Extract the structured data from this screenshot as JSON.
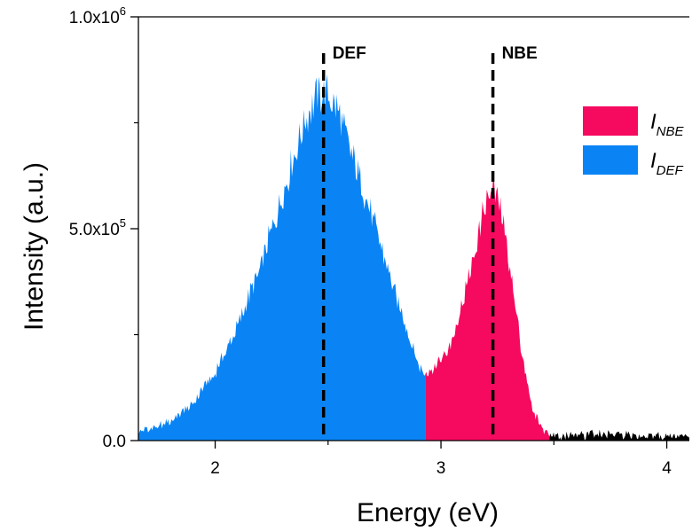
{
  "chart_data": {
    "type": "area",
    "xlabel": "Energy (eV)",
    "ylabel": "Intensity (a.u.)",
    "xlim": [
      1.66,
      4.1
    ],
    "ylim": [
      0,
      1000000
    ],
    "x_ticks": [
      {
        "value": 2,
        "label": "2"
      },
      {
        "value": 3,
        "label": "3"
      },
      {
        "value": 4,
        "label": "4"
      }
    ],
    "y_ticks": [
      {
        "value": 0,
        "mantissa": "0.0",
        "exp": ""
      },
      {
        "value": 500000,
        "mantissa": "5.0x10",
        "exp": "5"
      },
      {
        "value": 1000000,
        "mantissa": "1.0x10",
        "exp": "6"
      }
    ],
    "grid": false,
    "legend_position": "right",
    "series": [
      {
        "name": "I_DEF",
        "legend_main": "I",
        "legend_sub": "DEF",
        "color": "#0A84F5",
        "points": [
          [
            1.66,
            20000
          ],
          [
            1.7,
            25000
          ],
          [
            1.8,
            45000
          ],
          [
            1.9,
            90000
          ],
          [
            2.0,
            160000
          ],
          [
            2.1,
            270000
          ],
          [
            2.2,
            410000
          ],
          [
            2.3,
            580000
          ],
          [
            2.4,
            760000
          ],
          [
            2.45,
            810000
          ],
          [
            2.5,
            820000
          ],
          [
            2.55,
            770000
          ],
          [
            2.6,
            680000
          ],
          [
            2.7,
            520000
          ],
          [
            2.8,
            340000
          ],
          [
            2.9,
            180000
          ],
          [
            2.93,
            155000
          ]
        ]
      },
      {
        "name": "I_NBE",
        "legend_main": "I",
        "legend_sub": "NBE",
        "color": "#F50A5F",
        "points": [
          [
            2.93,
            155000
          ],
          [
            3.0,
            190000
          ],
          [
            3.05,
            240000
          ],
          [
            3.1,
            330000
          ],
          [
            3.15,
            450000
          ],
          [
            3.2,
            570000
          ],
          [
            3.23,
            590000
          ],
          [
            3.26,
            560000
          ],
          [
            3.3,
            430000
          ],
          [
            3.35,
            240000
          ],
          [
            3.4,
            80000
          ],
          [
            3.45,
            25000
          ],
          [
            3.48,
            10000
          ]
        ]
      },
      {
        "name": "",
        "color": "#000000",
        "points": [
          [
            3.48,
            10000
          ],
          [
            3.6,
            12000
          ],
          [
            3.7,
            14000
          ],
          [
            3.8,
            13000
          ],
          [
            3.9,
            12000
          ],
          [
            4.0,
            10000
          ],
          [
            4.1,
            9000
          ]
        ]
      }
    ],
    "annotations": [
      {
        "label": "DEF",
        "x": 2.48
      },
      {
        "label": "NBE",
        "x": 3.23
      }
    ]
  }
}
